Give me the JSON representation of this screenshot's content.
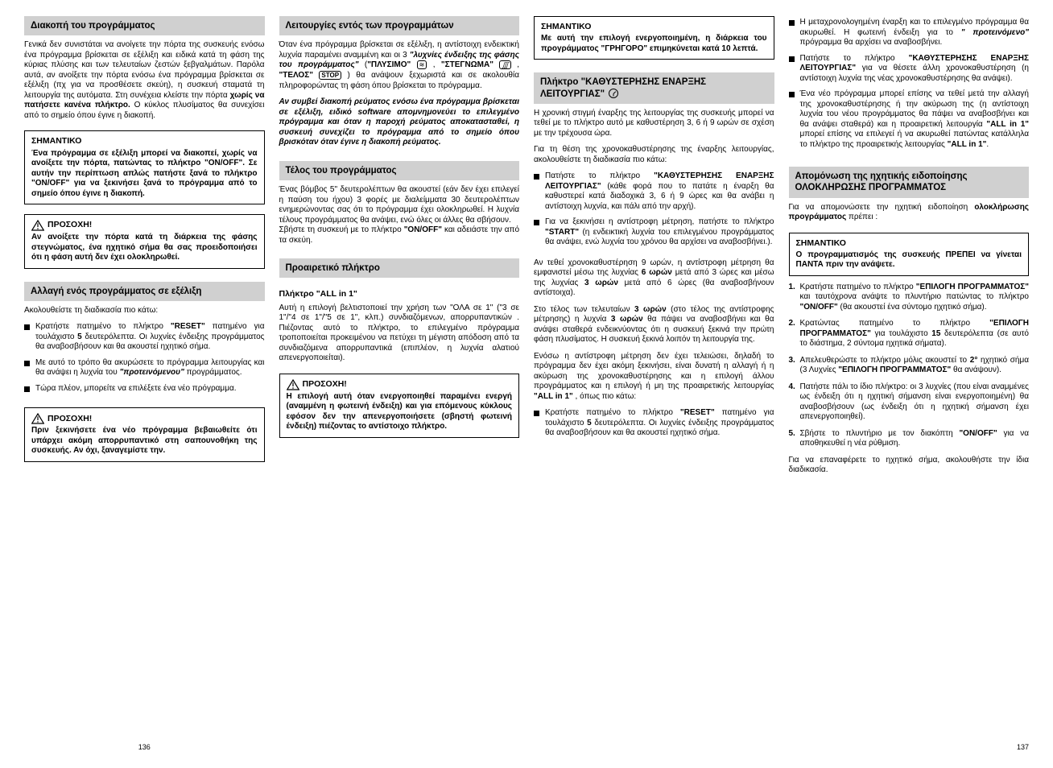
{
  "col1": {
    "h1": "Διακοπή του προγράμματος",
    "p1": "Γενικά δεν συνιστάται να ανοίγετε την πόρτα της συσκευής ενόσω ένα πρόγραμμα βρίσκεται σε εξέλιξη και ειδικά κατά τη φάση της κύριας πλύσης και των τελευταίων ζεστών ξεβγαλμάτων. Παρόλα αυτά, αν ανοίξετε την πόρτα ενόσω ένα πρόγραμμα βρίσκεται σε εξέλιξη (πχ για να προσθέσετε σκεύη), η συσκευή σταματά τη λειτουργία της αυτόματα. Στη συνέχεια κλείστε την πόρτα <b>χωρίς να πατήσετε κανένα πλήκτρο.</b> Ο κύκλος πλυσίματος θα συνεχίσει από το σημείο όπου έγινε η διακοπή.",
    "box1_title": "ΣΗΜΑΝΤΙΚΟ",
    "box1_body": "<b>Ένα πρόγραμμα σε εξέλιξη μπορεί να διακοπεί, χωρίς να ανοίξετε την πόρτα, πατώντας το πλήκτρο \"ON/OFF\". Σε αυτήν την περίπτωση απλώς πατήστε ξανά το πλήκτρο \"ON/OFF\" για να ξεκινήσει ξανά το πρόγραμμα από το σημείο όπου έγινε η διακοπή.</b>",
    "warn1_title": "ΠΡΟΣΟΧΗ!",
    "warn1_body": "<b>Αν ανοίξετε την πόρτα κατά τη διάρκεια της φάσης στεγνώματος, ένα ηχητικό σήμα θα σας προειδοποιήσει ότι η φάση αυτή δεν έχει ολοκληρωθεί.</b>",
    "h2": "Αλλαγή ενός προγράμματος σε εξέλιξη",
    "p2": "Ακολουθείστε τη διαδικασία πιο κάτω:",
    "li1": "Κρατήστε πατημένο το πλήκτρο <b>\"RESET\"</b> πατημένο για τουλάχιστο <b>5</b> δευτερόλεπτα. Οι λυχνίες ένδειξης προγράμματος θα αναβοσβήσουν και θα ακουστεί ηχητικό σήμα.",
    "li2": "Με αυτό το τρόπο θα ακυρώσετε το πρόγραμμα λειτουργίας και θα ανάψει η λυχνία του <b><i>\"προτεινόμενου\"</i></b> προγράμματος.",
    "li3": "Τώρα πλέον, μπορείτε να επιλέξετε ένα νέο πρόγραμμα.",
    "warn2_title": "ΠΡΟΣΟΧΗ!",
    "warn2_body": "<b>Πριν ξεκινήσετε ένα νέο πρόγραμμα βεβαιωθείτε ότι υπάρχει ακόμη απορρυπαντικό στη σαπουνοθήκη της συσκευής. Αν όχι, ξαναγεμίστε την.</b>",
    "foot": "136"
  },
  "col2": {
    "h1": "Λειτουργίες εντός των προγραμμάτων",
    "p1": "Όταν ένα πρόγραμμα βρίσκεται σε εξέλιξη, η αντίστοιχη ενδεικτική λυχνία παραμένει αναμμένη και οι 3 <b><i>\"λυχνίες ένδειξης της φάσης του προγράμματος\"</i></b> (<b>\"ΠΛΥΣΙΜΟ\"</b> <span class=\"inline-ico\" data-name=\"wash-icon\">≋</span> , <b>\"ΣΤΕΓΝΩΜΑ\"</b> <span class=\"inline-ico\" data-name=\"dry-icon\"><i>∭</i></span> , <b>\"ΤΕΛΟΣ\"</b> <span class=\"inline-ico\" data-name=\"stop-icon\"><b>STOP</b></span> ) θα ανάψουν ξεχωριστά και σε ακολουθία πληροφορώντας τη φάση όπου βρίσκεται το πρόγραμμα.",
    "p2": "<b><i>Αν συμβεί διακοπή ρεύματος ενόσω ένα πρόγραμμα βρίσκεται σε εξέλιξη, ειδικό software απομνημονεύει το επιλεγμένο πρόγραμμα και όταν η παροχή ρεύματος αποκατασταθεί, η συσκευή συνεχίζει το πρόγραμμα από το σημείο όπου βρισκόταν όταν έγινε η διακοπή ρεύματος.</i></b>",
    "h2": "Τέλος του προγράμματος",
    "p3": "Ένας βόμβος 5'' δευτερολέπτων θα ακουστεί (εάν δεν έχει επιλεγεί η παύση του ήχου) 3 φορές με διαλείμματα 30 δευτερολέπτων ενημερώνοντας σας ότι το πρόγραμμα έχει ολοκληρωθεί. Η λυχνία τέλους προγράμματος θα ανάψει, ενώ όλες οι άλλες θα σβήσουν.<br>Σβήστε τη συσκευή με το πλήκτρο <b>\"ON/OFF\"</b> και αδειάστε την από τα σκεύη.",
    "h3": "Προαιρετικό πλήκτρο",
    "sub1": "Πλήκτρο \"ALL in 1\"",
    "p4": "Αυτή η επιλογή βελτιστοποιεί την χρήση των \"ΟΛΑ σε 1\" (\"3 σε 1\"/\"4 σε 1\"/\"5 σε 1\", κλπ.) συνδιαζόμενων, απορρυπαντικών . Πιέζοντας αυτό το πλήκτρο, το επιλεγμένο πρόγραμμα τροποποιείται προκειμένου να πετύχει τη μέγιστη απόδοση από τα συνδιαζόμενα απορρυπαντικά (επιπλέον, η λυχνία αλατιού απενεργοποιείται).",
    "warn1_title": "ΠΡΟΣΟΧΗ!",
    "warn1_body": "<b>Η επιλογή αυτή όταν ενεργοποιηθεί παραμένει ενεργή (αναμμένη η φωτεινή ένδειξη) και για επόμενους κύκλους εφόσον δεν την απενεργοποιήσετε (σβηστή φωτεινή ένδειξη) πιέζοντας το αντίστοιχο πλήκτρο.</b>"
  },
  "col3": {
    "box1_title": "ΣΗΜΑΝΤΙΚΟ",
    "box1_body": "<b>Με αυτή την επιλογή ενεργοποιημένη, η διάρκεια του προγράμματος \"ΓΡΗΓΟΡΟ\" επιμηκύνεται κατά 10 λεπτά.</b>",
    "h1": "Πλήκτρο \"ΚΑΘΥΣΤΕΡΗΣΗΣ ΕΝΑΡΞΗΣ ΛΕΙΤΟΥΡΓΙΑΣ\"",
    "p1": "Η χρονική στιγμή έναρξης της λειτουργίας της συσκευής μπορεί να τεθεί με το πλήκτρο αυτό με καθυστέρηση 3, 6 ή 9 ωρών σε σχέση με την τρέχουσα ώρα.",
    "p2": "Για τη θέση της χρονοκαθυστέρησης της έναρξης λειτουργίας, ακολουθείστε τη διαδικασία πιο κάτω:",
    "li1": "Πατήστε το πλήκτρο <b>\"ΚΑΘΥΣΤΕΡΗΣΗΣ ΕΝΑΡΞΗΣ ΛΕΙΤΟΥΡΓΙΑΣ\"</b> (κάθε φορά που το πατάτε η έναρξη θα καθυστερεί κατά διαδοχικά 3, 6 ή 9 ώρες και θα ανάβει η αντίστοιχη λυχνία, και πάλι από την αρχή).",
    "li2": "Για να ξεκινήσει η αντίστροφη μέτρηση, πατήστε το πλήκτρο <b>\"START\"</b> (η ενδεικτική λυχνία του επιλεγμένου προγράμματος θα ανάψει, ενώ λυχνία του χρόνου θα αρχίσει να αναβοσβήνει.).",
    "p3": "Αν τεθεί χρονοκαθυστέρηση 9 ωρών, η αντίστροφη μέτρηση θα εμφανιστεί μέσω της λυχνίας <b>6 ωρών</b> μετά από 3 ώρες και μέσω της λυχνίας <b>3 ωρών</b> μετά από 6 ώρες (θα αναβοσβήνουν αντίστοιχα).",
    "p4": "Στο τέλος των τελευταίων <b>3 ωρών</b> (στο τέλος της αντίστροφης μέτρησης) η λυχνία <b>3 ωρών</b> θα πάψει να αναβοσβήνει και θα ανάψει σταθερά ενδεικνύοντας ότι η συσκευή ξεκινά την πρώτη φάση πλυσίματος. Η συσκευή ξεκινά λοιπόν τη λειτουργία της.",
    "p5": "Ενόσω η αντίστροφη μέτρηση δεν έχει τελειώσει, δηλαδή το πρόγραμμα δεν έχει ακόμη ξεκινήσει, είναι δυνατή η αλλαγή ή η ακύρωση της χρονοκαθυστέρησης και η επιλογή άλλου προγράμματος και η επιλογή ή μη της προαιρετικής λειτουργίας <b>\"ALL in 1\"</b> , όπως πιο κάτω:",
    "li3": "Κρατήστε πατημένο το πλήκτρο <b>\"RESET\"</b> πατημένο για τουλάχιστο <b>5</b> δευτερόλεπτα. Οι λυχνίες ένδειξης προγράμματος θα αναβοσβήσουν και θα ακουστεί ηχητικό σήμα."
  },
  "col4": {
    "li1": "Η μεταχρονολογημένη έναρξη και το επιλεγμένο πρόγραμμα θα ακυρωθεί. Η φωτεινή ένδειξη για το <b><i>\" προτεινόμενο\"</i></b> πρόγραμμα θα αρχίσει να αναβοσβήνει.",
    "li2": "Πατήστε το πλήκτρο <b>\"ΚΑΘΥΣΤΕΡΗΣΗΣ ΕΝΑΡΞΗΣ ΛΕΙΤΟΥΡΓΙΑΣ\"</b> για να θέσετε άλλη χρονοκαθυστέρηση (η αντίστοιχη λυχνία της νέας χρονοκαθυστέρησης θα ανάψει).",
    "li3": "Ένα νέο πρόγραμμα μπορεί επίσης να τεθεί μετά την αλλαγή της χρονοκαθυστέρησης ή την ακύρωση της (η αντίστοιχη λυχνία του νέου προγράμματος θα πάψει να αναβοσβήνει και θα ανάψει σταθερά) και η προαιρετική λειτουργία <b>\"ALL in 1\"</b> μπορεί επίσης να επιλεγεί ή να ακυρωθεί πατώντας κατάλληλα το πλήκτρο της προαιρετικής λειτουργίας <b>\"ALL in 1\"</b>.",
    "h1": "Απομόνωση της ηχητικής ειδοποίησης ΟΛΟΚΛΗΡΩΣΗΣ ΠΡΟΓΡΑΜΜΑΤΟΣ",
    "p1": "Για να απομονώσετε την ηχητική ειδοποίηση <b>ολοκλήρωσης προγράμματος</b> πρέπει :",
    "box1_title": "ΣΗΜΑΝΤΙΚΟ",
    "box1_body": "<b>Ο προγραμματισμός της συσκευής ΠΡΕΠΕΙ να γίνεται ΠΑΝΤΑ πριν την ανάψετε.</b>",
    "ol1": "Κρατήστε πατημένο το πλήκτρο <b>\"ΕΠΙΛΟΓΗ ΠΡΟΓΡΑΜΜΑΤΟΣ\"</b> και ταυτόχρονα ανάψτε το πλυντήριο πατώντας το πλήκτρο <b>\"ON/OFF\"</b> (θα ακουστεί ένα σύντομο ηχητικό σήμα).",
    "ol2": "Κρατώντας πατημένο το πλήκτρο <b>\"ΕΠΙΛΟΓΗ ΠΡΟΓΡΑΜΜΑΤΟΣ\"</b> για τουλάχιστο <b>15</b> δευτερόλεπτα (σε αυτό το διάστημα, 2 σύντομα ηχητικά σήματα).",
    "ol3": "Απελευθερώστε το πλήκτρο μόλις ακουστεί το <b>2°</b> ηχητικό σήμα (3 Λυχνίες <b>\"ΕΠΙΛΟΓΗ ΠΡΟΓΡΑΜΜΑΤΟΣ\"</b> θα ανάψουν).",
    "ol4": "Πατήστε πάλι το ίδιο πλήκτρο: οι 3 λυχνίες (που είναι αναμμένες ως ένδειξη ότι η ηχητική σήμανση είναι ενεργοποιημένη) θα αναβοσβήσουν (ως ένδειξη ότι η ηχητική σήμανση έχει απενεργοποιηθεί).",
    "ol5": "Σβήστε το πλυντήριο με τον διακόπτη <b>\"ON/OFF\"</b> για να αποθηκευθεί η νέα ρύθμιση.",
    "p2": "Για να επαναφέρετε το ηχητικό σήμα, ακολουθήστε την ίδια διαδικασία.",
    "foot": "137"
  }
}
